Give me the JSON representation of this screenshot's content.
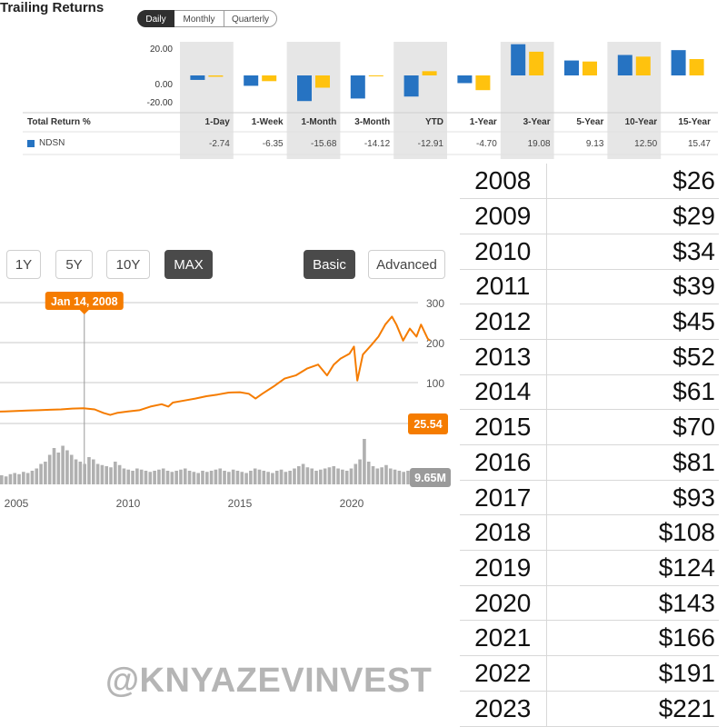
{
  "trailing": {
    "title": "Trailing Returns",
    "toggle": {
      "daily": "Daily",
      "monthly": "Monthly",
      "quarterly": "Quarterly",
      "selected": "Daily"
    },
    "total_return_label": "Total Return %",
    "legend_label": "NDSN",
    "colors": {
      "ticker": "#2673c2",
      "benchmark": "#ffc20e",
      "shade": "#e6e6e6"
    }
  },
  "chart_data": [
    {
      "type": "bar",
      "categories": [
        "1-Day",
        "1-Week",
        "1-Month",
        "3-Month",
        "YTD",
        "1-Year",
        "3-Year",
        "5-Year",
        "10-Year",
        "15-Year"
      ],
      "series": [
        {
          "name": "NDSN",
          "values": [
            -2.74,
            -6.35,
            -15.68,
            -14.12,
            -12.91,
            -4.7,
            19.08,
            9.13,
            12.5,
            15.47
          ],
          "display": [
            "-2.74",
            "-6.35",
            "-15.68",
            "-14.12",
            "-12.91",
            "-4.70",
            "19.08",
            "9.13",
            "12.50",
            "15.47"
          ]
        },
        {
          "values": [
            -0.8,
            -3.5,
            -7.5,
            -0.5,
            2.6,
            -9.0,
            14.5,
            8.5,
            11.5,
            10.0
          ]
        }
      ],
      "yticks": [
        "20.00",
        "0.00",
        "-20.00"
      ],
      "ylim": [
        -22,
        24
      ]
    },
    {
      "type": "line",
      "buttons": [
        "1Y",
        "5Y",
        "10Y",
        "MAX",
        "Basic",
        "Advanced"
      ],
      "selected": [
        "MAX",
        "Basic"
      ],
      "xticks": [
        2005,
        2010,
        2015,
        2020
      ],
      "yticks": [
        100,
        200,
        300
      ],
      "ylim": [
        0,
        300
      ],
      "tooltip_date": "Jan 14, 2008",
      "tooltip_year": 2008.04,
      "price_label": "25.54",
      "volume_label": "9.65M",
      "line_color": "#f57c00",
      "points": [
        [
          2003.0,
          24
        ],
        [
          2003.5,
          25
        ],
        [
          2004.0,
          27
        ],
        [
          2004.5,
          28
        ],
        [
          2005.0,
          29
        ],
        [
          2005.5,
          30
        ],
        [
          2006.0,
          31
        ],
        [
          2006.5,
          32
        ],
        [
          2007.0,
          33
        ],
        [
          2007.5,
          35
        ],
        [
          2008.0,
          36
        ],
        [
          2008.5,
          33
        ],
        [
          2008.9,
          24
        ],
        [
          2009.2,
          19
        ],
        [
          2009.5,
          24
        ],
        [
          2010.0,
          28
        ],
        [
          2010.5,
          31
        ],
        [
          2011.0,
          40
        ],
        [
          2011.5,
          46
        ],
        [
          2011.8,
          40
        ],
        [
          2012.0,
          50
        ],
        [
          2012.5,
          55
        ],
        [
          2013.0,
          60
        ],
        [
          2013.5,
          66
        ],
        [
          2014.0,
          70
        ],
        [
          2014.5,
          75
        ],
        [
          2015.0,
          76
        ],
        [
          2015.4,
          72
        ],
        [
          2015.7,
          60
        ],
        [
          2016.0,
          72
        ],
        [
          2016.5,
          90
        ],
        [
          2017.0,
          110
        ],
        [
          2017.5,
          118
        ],
        [
          2018.0,
          135
        ],
        [
          2018.5,
          145
        ],
        [
          2018.9,
          118
        ],
        [
          2019.2,
          145
        ],
        [
          2019.5,
          160
        ],
        [
          2019.9,
          172
        ],
        [
          2020.1,
          190
        ],
        [
          2020.25,
          105
        ],
        [
          2020.5,
          170
        ],
        [
          2020.9,
          195
        ],
        [
          2021.2,
          215
        ],
        [
          2021.5,
          245
        ],
        [
          2021.8,
          265
        ],
        [
          2022.0,
          245
        ],
        [
          2022.3,
          205
        ],
        [
          2022.6,
          235
        ],
        [
          2022.9,
          215
        ],
        [
          2023.1,
          245
        ],
        [
          2023.4,
          210
        ],
        [
          2023.5,
          205
        ]
      ],
      "volume": [
        8,
        7,
        9,
        10,
        9,
        11,
        10,
        12,
        14,
        18,
        20,
        26,
        32,
        28,
        34,
        30,
        26,
        22,
        20,
        18,
        24,
        22,
        18,
        17,
        16,
        15,
        20,
        17,
        14,
        13,
        12,
        14,
        13,
        12,
        11,
        12,
        13,
        14,
        12,
        11,
        12,
        13,
        14,
        12,
        11,
        10,
        12,
        11,
        12,
        13,
        14,
        12,
        11,
        13,
        12,
        11,
        10,
        12,
        14,
        13,
        12,
        11,
        10,
        12,
        13,
        11,
        12,
        14,
        16,
        18,
        15,
        14,
        12,
        13,
        14,
        15,
        16,
        14,
        13,
        12,
        14,
        18,
        22,
        40,
        20,
        16,
        14,
        15,
        17,
        14,
        13,
        12,
        11,
        12
      ]
    },
    {
      "type": "table",
      "rows": [
        {
          "year": "2008",
          "price": "$26"
        },
        {
          "year": "2009",
          "price": "$29"
        },
        {
          "year": "2010",
          "price": "$34"
        },
        {
          "year": "2011",
          "price": "$39"
        },
        {
          "year": "2012",
          "price": "$45"
        },
        {
          "year": "2013",
          "price": "$52"
        },
        {
          "year": "2014",
          "price": "$61"
        },
        {
          "year": "2015",
          "price": "$70"
        },
        {
          "year": "2016",
          "price": "$81"
        },
        {
          "year": "2017",
          "price": "$93"
        },
        {
          "year": "2018",
          "price": "$108"
        },
        {
          "year": "2019",
          "price": "$124"
        },
        {
          "year": "2020",
          "price": "$143"
        },
        {
          "year": "2021",
          "price": "$166"
        },
        {
          "year": "2022",
          "price": "$191"
        },
        {
          "year": "2023",
          "price": "$221"
        }
      ]
    }
  ],
  "watermark": "@KNYAZEVINVEST"
}
